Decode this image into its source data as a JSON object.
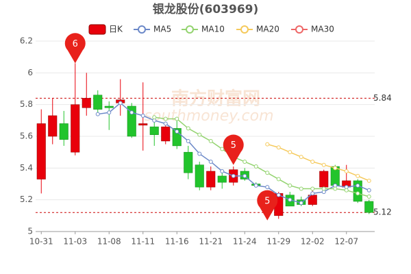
{
  "chart_data": {
    "type": "candlestick",
    "title": "银龙股份(603969)",
    "watermark": "南方财富网",
    "watermark_sub": "southmoney.com",
    "categories": [
      "10-31",
      null,
      null,
      "11-03",
      null,
      null,
      "11-08",
      null,
      null,
      "11-11",
      null,
      null,
      "11-16",
      null,
      null,
      "11-21",
      null,
      null,
      "11-24",
      null,
      null,
      "11-29",
      null,
      null,
      "12-02",
      null,
      null,
      "12-07",
      null,
      null
    ],
    "candles": {
      "name": "日K",
      "up_color": "#e8000b",
      "down_color": "#22c42c",
      "open": [
        5.33,
        5.6,
        5.68,
        5.5,
        5.78,
        5.86,
        5.79,
        5.81,
        5.79,
        5.67,
        5.66,
        5.57,
        5.65,
        5.5,
        5.42,
        5.28,
        5.35,
        5.31,
        5.38,
        5.3,
        5.14,
        5.1,
        5.23,
        5.2,
        5.17,
        5.28,
        5.41,
        5.28,
        5.32,
        5.19
      ],
      "high": [
        5.77,
        5.84,
        5.76,
        6.06,
        6.0,
        5.89,
        5.82,
        5.96,
        5.81,
        5.94,
        5.7,
        5.68,
        5.7,
        5.54,
        5.44,
        5.41,
        5.37,
        5.41,
        5.4,
        5.31,
        5.25,
        5.25,
        5.25,
        5.22,
        5.26,
        5.39,
        5.42,
        5.42,
        5.33,
        5.2
      ],
      "low": [
        5.24,
        5.55,
        5.54,
        5.48,
        5.73,
        5.73,
        5.64,
        5.73,
        5.59,
        5.51,
        5.54,
        5.55,
        5.52,
        5.33,
        5.26,
        5.26,
        5.27,
        5.29,
        5.32,
        5.28,
        5.1,
        5.08,
        5.16,
        5.16,
        5.16,
        5.27,
        5.27,
        5.27,
        5.18,
        5.11
      ],
      "close": [
        5.68,
        5.73,
        5.58,
        5.8,
        5.84,
        5.77,
        5.78,
        5.83,
        5.6,
        5.68,
        5.61,
        5.66,
        5.54,
        5.37,
        5.28,
        5.38,
        5.31,
        5.39,
        5.33,
        5.29,
        5.24,
        5.24,
        5.16,
        5.17,
        5.23,
        5.38,
        5.29,
        5.32,
        5.19,
        5.12
      ]
    },
    "series": [
      {
        "name": "MA5",
        "color": "#6b88c8",
        "values": [
          null,
          null,
          null,
          null,
          null,
          5.74,
          5.75,
          5.81,
          5.75,
          5.73,
          5.7,
          5.68,
          5.63,
          5.57,
          5.49,
          5.44,
          5.38,
          5.35,
          5.35,
          5.29,
          5.28,
          5.23,
          5.2,
          5.18,
          5.24,
          5.25,
          5.29,
          5.28,
          5.29,
          5.26
        ]
      },
      {
        "name": "MA10",
        "color": "#93d36f",
        "values": [
          null,
          null,
          null,
          null,
          null,
          null,
          null,
          null,
          null,
          null,
          5.72,
          5.71,
          5.71,
          5.65,
          5.61,
          5.57,
          5.52,
          5.47,
          5.44,
          5.41,
          5.37,
          5.33,
          5.29,
          5.27,
          5.27,
          5.27,
          5.27,
          5.26,
          5.24,
          5.22
        ]
      },
      {
        "name": "MA20",
        "color": "#f5c95a",
        "values": [
          null,
          null,
          null,
          null,
          null,
          null,
          null,
          null,
          null,
          null,
          null,
          null,
          null,
          null,
          null,
          null,
          null,
          null,
          null,
          null,
          5.55,
          5.53,
          5.5,
          5.47,
          5.44,
          5.42,
          5.4,
          5.38,
          5.35,
          5.32
        ]
      },
      {
        "name": "MA30",
        "color": "#ee6666",
        "values": [
          null,
          null,
          null,
          null,
          null,
          null,
          null,
          null,
          null,
          null,
          null,
          null,
          null,
          null,
          null,
          null,
          null,
          null,
          null,
          null,
          null,
          null,
          null,
          null,
          null,
          null,
          null,
          null,
          null,
          null
        ]
      }
    ],
    "hlines": [
      5.84,
      5.12
    ],
    "annotations": [
      {
        "text": "6",
        "index": 3,
        "value": 6.06
      },
      {
        "text": "5",
        "index": 17,
        "value": 5.42
      },
      {
        "text": "5",
        "index": 20,
        "value": 5.07
      }
    ],
    "ylim": [
      5,
      6.2
    ],
    "yticks": [
      5,
      5.2,
      5.4,
      5.6,
      5.8,
      6,
      6.2
    ],
    "grid": true
  }
}
